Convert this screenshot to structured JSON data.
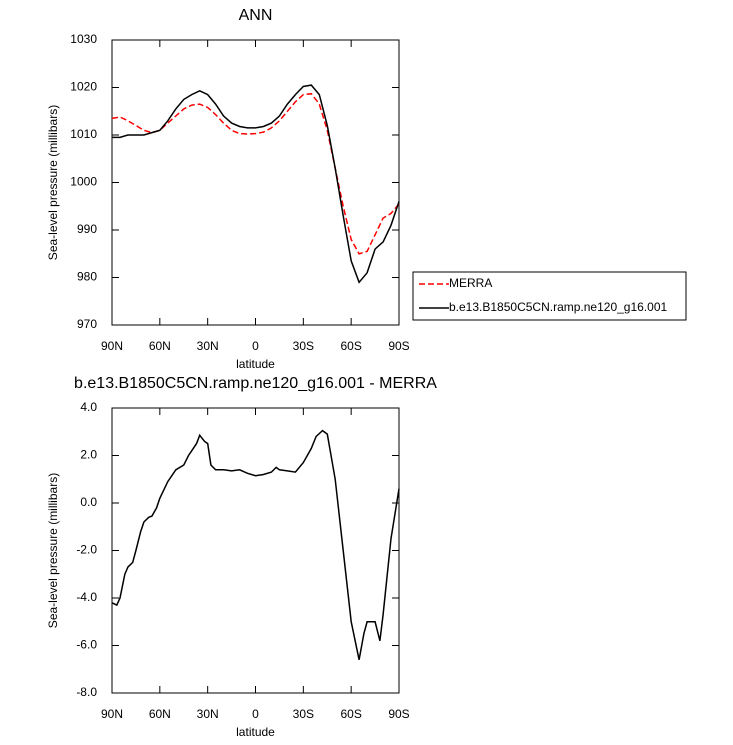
{
  "chart_data": [
    {
      "type": "line",
      "title": "ANN",
      "xlabel": "latitude",
      "ylabel": "Sea-level pressure (millibars)",
      "x": [
        90,
        85,
        80,
        75,
        70,
        65,
        60,
        55,
        50,
        45,
        40,
        35,
        30,
        25,
        20,
        15,
        10,
        5,
        0,
        -5,
        -10,
        -15,
        -20,
        -25,
        -30,
        -35,
        -40,
        -45,
        -50,
        -55,
        -60,
        -65,
        -70,
        -75,
        -80,
        -85,
        -90
      ],
      "series": [
        {
          "name": "MERRA",
          "color": "#ff0000",
          "line_style": "dashed",
          "values": [
            1013.5,
            1013.8,
            1013,
            1012,
            1011,
            1010.5,
            1011,
            1012.5,
            1014,
            1015.5,
            1016.3,
            1016.5,
            1015.8,
            1014.3,
            1012.5,
            1011,
            1010.3,
            1010.2,
            1010.3,
            1010.6,
            1011.5,
            1013,
            1015,
            1017,
            1018.5,
            1018.7,
            1016.5,
            1011,
            1003,
            995,
            988,
            985,
            985.5,
            989,
            992.5,
            993.5,
            995.5
          ]
        },
        {
          "name": "b.e13.B1850C5CN.ramp.ne120_g16.001",
          "color": "#000000",
          "line_style": "solid",
          "values": [
            1009.5,
            1009.5,
            1010,
            1010,
            1010,
            1010.5,
            1011,
            1013,
            1015.5,
            1017.5,
            1018.5,
            1019.3,
            1018.5,
            1016.5,
            1014,
            1012.5,
            1011.8,
            1011.5,
            1011.5,
            1011.8,
            1012.5,
            1014,
            1016.5,
            1018.5,
            1020.2,
            1020.5,
            1018.5,
            1012,
            1003,
            993,
            983.5,
            979,
            981,
            986,
            987.5,
            991,
            996
          ]
        }
      ],
      "xlim": [
        90,
        -90
      ],
      "xticks": [
        {
          "value": 90,
          "label": "90N"
        },
        {
          "value": 60,
          "label": "60N"
        },
        {
          "value": 30,
          "label": "30N"
        },
        0,
        {
          "value": -30,
          "label": "30S"
        },
        {
          "value": -60,
          "label": "60S"
        },
        {
          "value": -90,
          "label": "90S"
        }
      ],
      "ylim": [
        970,
        1030
      ],
      "yticks": [
        970,
        980,
        990,
        1000,
        1010,
        1020,
        1030
      ],
      "legend": "outside-right"
    },
    {
      "type": "line",
      "title": "b.e13.B1850C5CN.ramp.ne120_g16.001 - MERRA",
      "xlabel": "latitude",
      "ylabel": "Sea-level pressure (millibars)",
      "x": [
        90,
        87,
        85,
        82,
        80,
        77,
        75,
        72,
        70,
        67,
        65,
        62,
        60,
        55,
        50,
        45,
        42,
        40,
        37,
        35,
        32,
        30,
        28,
        25,
        20,
        15,
        10,
        5,
        0,
        -5,
        -10,
        -13,
        -15,
        -20,
        -25,
        -30,
        -35,
        -38,
        -42,
        -45,
        -50,
        -55,
        -60,
        -65,
        -68,
        -70,
        -75,
        -78,
        -80,
        -85,
        -90
      ],
      "color": "#000000",
      "values": [
        -4.2,
        -4.3,
        -4.0,
        -3.0,
        -2.7,
        -2.5,
        -2.0,
        -1.2,
        -0.8,
        -0.6,
        -0.55,
        -0.2,
        0.2,
        0.9,
        1.4,
        1.6,
        2.0,
        2.2,
        2.5,
        2.85,
        2.6,
        2.5,
        1.6,
        1.4,
        1.4,
        1.35,
        1.4,
        1.25,
        1.15,
        1.2,
        1.3,
        1.5,
        1.4,
        1.35,
        1.3,
        1.7,
        2.3,
        2.8,
        3.05,
        2.9,
        1.0,
        -2.0,
        -5.0,
        -6.6,
        -5.5,
        -5.0,
        -5.0,
        -5.8,
        -4.7,
        -1.5,
        0.6
      ],
      "xlim": [
        90,
        -90
      ],
      "xticks": [
        {
          "value": 90,
          "label": "90N"
        },
        {
          "value": 60,
          "label": "60N"
        },
        {
          "value": 30,
          "label": "30N"
        },
        0,
        {
          "value": -30,
          "label": "30S"
        },
        {
          "value": -60,
          "label": "60S"
        },
        {
          "value": -90,
          "label": "90S"
        }
      ],
      "ylim": [
        -8,
        4
      ],
      "yticks": [
        {
          "value": -8,
          "label": "-8.0"
        },
        {
          "value": -6,
          "label": "-6.0"
        },
        {
          "value": -4,
          "label": "-4.0"
        },
        {
          "value": -2,
          "label": "-2.0"
        },
        {
          "value": 0,
          "label": "0.0"
        },
        {
          "value": 2,
          "label": "2.0"
        },
        {
          "value": 4,
          "label": "4.0"
        }
      ]
    }
  ]
}
